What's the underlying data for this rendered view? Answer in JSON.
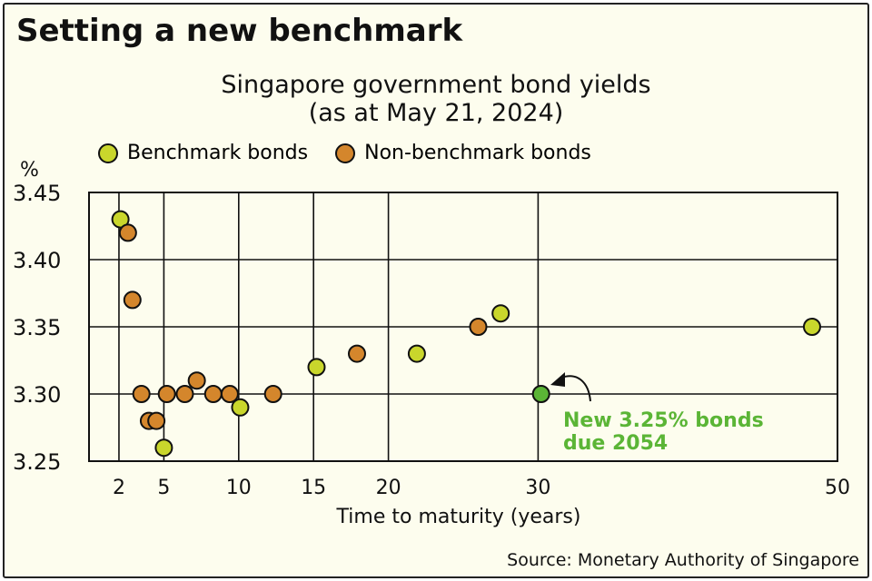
{
  "headline": "Setting a new benchmark",
  "chart_data": {
    "type": "scatter",
    "title": "Singapore government bond yields",
    "subtitle": "(as at May 21, 2024)",
    "xlabel": "Time to maturity (years)",
    "ylabel": "%",
    "xlim": [
      0,
      50
    ],
    "ylim": [
      3.25,
      3.45
    ],
    "xticks": [
      2,
      5,
      10,
      15,
      20,
      30,
      50
    ],
    "yticks": [
      "3.25",
      "3.30",
      "3.35",
      "3.40",
      "3.45"
    ],
    "grid": true,
    "legend_position": "top",
    "series": [
      {
        "name": "Benchmark bonds",
        "color": "#c9d62c",
        "points": [
          [
            2.1,
            3.43
          ],
          [
            5.0,
            3.26
          ],
          [
            10.1,
            3.29
          ],
          [
            15.2,
            3.32
          ],
          [
            21.9,
            3.33
          ],
          [
            27.5,
            3.36
          ],
          [
            48.3,
            3.35
          ]
        ]
      },
      {
        "name": "Non-benchmark bonds",
        "color": "#d4862c",
        "points": [
          [
            2.6,
            3.42
          ],
          [
            2.9,
            3.37
          ],
          [
            3.5,
            3.3
          ],
          [
            4.0,
            3.28
          ],
          [
            4.5,
            3.28
          ],
          [
            5.2,
            3.3
          ],
          [
            6.4,
            3.3
          ],
          [
            7.2,
            3.31
          ],
          [
            8.3,
            3.3
          ],
          [
            9.4,
            3.3
          ],
          [
            12.3,
            3.3
          ],
          [
            17.9,
            3.33
          ],
          [
            26.0,
            3.35
          ]
        ]
      }
    ],
    "highlight": {
      "point": [
        30.2,
        3.3
      ],
      "color": "#5bb536",
      "label_line1": "New 3.25% bonds",
      "label_line2": "due 2054"
    }
  },
  "source": "Source: Monetary Authority of Singapore"
}
